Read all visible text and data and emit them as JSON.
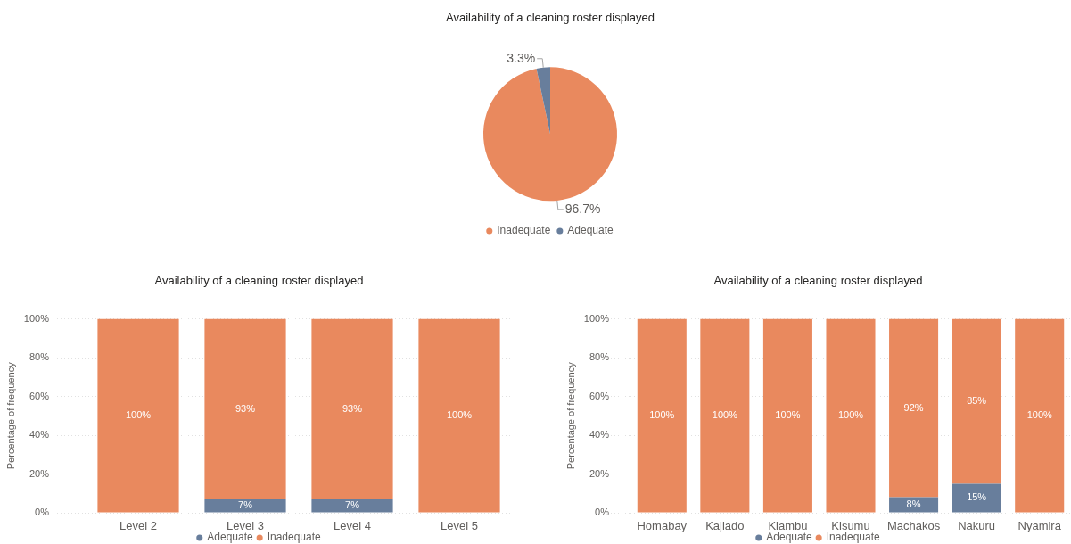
{
  "chart_data": [
    {
      "type": "pie",
      "title": "Availability of a cleaning roster displayed",
      "categories": [
        "Inadequate",
        "Adequate"
      ],
      "values": [
        96.7,
        3.3
      ],
      "colors": [
        "#e9895e",
        "#687e9c"
      ],
      "value_labels": [
        "96.7%",
        "3.3%"
      ],
      "legend": "bottom"
    },
    {
      "type": "bar",
      "stacked": true,
      "title": "Availability of a cleaning roster displayed",
      "ylabel": "Percentage of frequency",
      "categories": [
        "Level 2",
        "Level 3",
        "Level 4",
        "Level 5"
      ],
      "series": [
        {
          "name": "Adequate",
          "color": "#687e9c",
          "values": [
            0,
            7,
            7,
            0
          ],
          "value_labels": [
            null,
            "7%",
            "7%",
            null
          ]
        },
        {
          "name": "Inadequate",
          "color": "#e9895e",
          "values": [
            100,
            93,
            93,
            100
          ],
          "value_labels": [
            "100%",
            "93%",
            "93%",
            "100%"
          ]
        }
      ],
      "ylim": [
        0,
        100
      ],
      "yticks": [
        {
          "value": 0,
          "label": "0%"
        },
        {
          "value": 20,
          "label": "20%"
        },
        {
          "value": 40,
          "label": "40%"
        },
        {
          "value": 60,
          "label": "60%"
        },
        {
          "value": 80,
          "label": "80%"
        },
        {
          "value": 100,
          "label": "100%"
        }
      ],
      "grid": "y",
      "legend": "bottom"
    },
    {
      "type": "bar",
      "stacked": true,
      "title": "Availability of a cleaning roster displayed",
      "ylabel": "Percentage of frequency",
      "categories": [
        "Homabay",
        "Kajiado",
        "Kiambu",
        "Kisumu",
        "Machakos",
        "Nakuru",
        "Nyamira"
      ],
      "series": [
        {
          "name": "Adequate",
          "color": "#687e9c",
          "values": [
            0,
            0,
            0,
            0,
            8,
            15,
            0
          ],
          "value_labels": [
            null,
            null,
            null,
            null,
            "8%",
            "15%",
            null
          ]
        },
        {
          "name": "Inadequate",
          "color": "#e9895e",
          "values": [
            100,
            100,
            100,
            100,
            92,
            85,
            100
          ],
          "value_labels": [
            "100%",
            "100%",
            "100%",
            "100%",
            "92%",
            "85%",
            "100%"
          ]
        }
      ],
      "ylim": [
        0,
        100
      ],
      "yticks": [
        {
          "value": 0,
          "label": "0%"
        },
        {
          "value": 20,
          "label": "20%"
        },
        {
          "value": 40,
          "label": "40%"
        },
        {
          "value": 60,
          "label": "60%"
        },
        {
          "value": 80,
          "label": "80%"
        },
        {
          "value": 100,
          "label": "100%"
        }
      ],
      "grid": "y",
      "legend": "bottom"
    }
  ]
}
